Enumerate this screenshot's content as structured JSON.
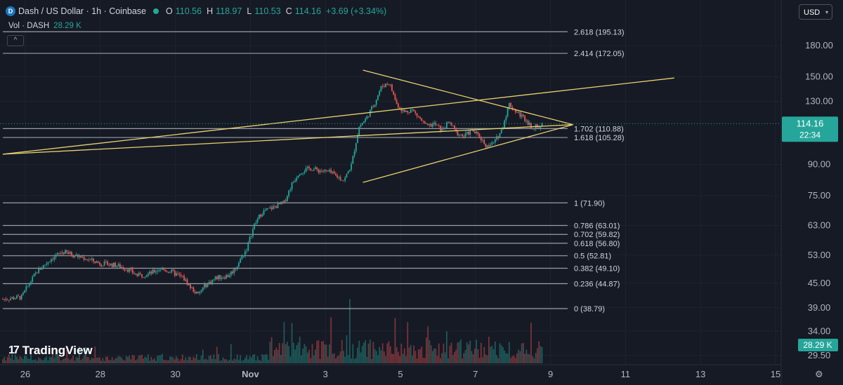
{
  "header": {
    "symbol_title": "Dash / US Dollar · 1h · Coinbase",
    "logo_glyph": "D",
    "open_label": "O",
    "open_value": "110.56",
    "high_label": "H",
    "high_value": "118.97",
    "low_label": "L",
    "low_value": "110.53",
    "close_label": "C",
    "close_value": "114.16",
    "change": "+3.69 (+3.34%)"
  },
  "volume": {
    "label": "Vol · DASH",
    "value": "28.29 K"
  },
  "currency_button": {
    "label": "USD"
  },
  "collapse_button": {
    "glyph": "^"
  },
  "branding": {
    "logo_mark": "17",
    "name": "TradingView"
  },
  "colors": {
    "up": "#26a69a",
    "down": "#ef5350",
    "trendline": "#e8d170",
    "fib": "#b2b5be"
  },
  "chart_data": {
    "type": "candlestick",
    "y_scale": "log",
    "ylim": [
      29.5,
      230
    ],
    "y_ticks": [
      "180.00",
      "150.00",
      "130.00",
      "90.00",
      "75.00",
      "63.00",
      "53.00",
      "45.00",
      "39.00",
      "34.00",
      "29.50"
    ],
    "x_ticks": [
      "26",
      "28",
      "30",
      "Nov",
      "3",
      "5",
      "7",
      "9",
      "11",
      "13",
      "15"
    ],
    "xlim": [
      25.4,
      16.1
    ],
    "current_price": "114.16",
    "countdown": "22:34",
    "volume_last": "28.29 K",
    "fib_levels": [
      {
        "label": "2.618 (195.13)",
        "value": 195.13
      },
      {
        "label": "2.414 (172.05)",
        "value": 172.05
      },
      {
        "label": "1.702 (110.88)",
        "value": 110.88
      },
      {
        "label": "1.618 (105.28)",
        "value": 105.28
      },
      {
        "label": "1 (71.90)",
        "value": 71.9
      },
      {
        "label": "0.786 (63.01)",
        "value": 63.01
      },
      {
        "label": "0.702 (59.82)",
        "value": 59.82
      },
      {
        "label": "0.618 (56.80)",
        "value": 56.8
      },
      {
        "label": "0.5 (52.81)",
        "value": 52.81
      },
      {
        "label": "0.382 (49.10)",
        "value": 49.1
      },
      {
        "label": "0.236 (44.87)",
        "value": 44.87
      },
      {
        "label": "0 (38.79)",
        "value": 38.79
      }
    ],
    "price_path": [
      [
        25.4,
        41
      ],
      [
        25.9,
        41.5
      ],
      [
        26.3,
        48
      ],
      [
        26.7,
        52
      ],
      [
        27.0,
        54
      ],
      [
        27.3,
        53
      ],
      [
        27.6,
        52
      ],
      [
        28.0,
        50.5
      ],
      [
        28.4,
        50
      ],
      [
        28.7,
        49
      ],
      [
        29.0,
        47
      ],
      [
        29.3,
        47.5
      ],
      [
        29.6,
        49
      ],
      [
        29.9,
        48
      ],
      [
        30.2,
        46.5
      ],
      [
        30.4,
        44
      ],
      [
        30.6,
        42
      ],
      [
        30.8,
        44.5
      ],
      [
        31.1,
        46.5
      ],
      [
        31.4,
        47
      ],
      [
        31.6,
        49
      ],
      [
        31.9,
        55
      ],
      [
        32.1,
        63
      ],
      [
        32.3,
        68
      ],
      [
        32.6,
        70
      ],
      [
        32.9,
        72
      ],
      [
        33.1,
        80
      ],
      [
        33.3,
        86
      ],
      [
        33.6,
        88
      ],
      [
        33.8,
        87
      ],
      [
        34.1,
        86
      ],
      [
        34.3,
        84
      ],
      [
        34.5,
        82
      ],
      [
        34.7,
        90
      ],
      [
        34.9,
        112
      ],
      [
        35.1,
        118
      ],
      [
        35.3,
        128
      ],
      [
        35.5,
        142
      ],
      [
        35.7,
        145
      ],
      [
        35.9,
        128
      ],
      [
        36.1,
        122
      ],
      [
        36.3,
        124
      ],
      [
        36.5,
        118
      ],
      [
        36.7,
        112
      ],
      [
        36.9,
        114
      ],
      [
        37.1,
        110
      ],
      [
        37.3,
        115
      ],
      [
        37.5,
        108
      ],
      [
        37.7,
        106
      ],
      [
        37.9,
        110
      ],
      [
        38.1,
        106
      ],
      [
        38.3,
        100
      ],
      [
        38.5,
        102
      ],
      [
        38.7,
        110
      ],
      [
        38.9,
        128
      ],
      [
        39.1,
        122
      ],
      [
        39.3,
        118
      ],
      [
        39.5,
        112
      ],
      [
        39.7,
        112
      ],
      [
        39.8,
        114.16
      ]
    ]
  }
}
